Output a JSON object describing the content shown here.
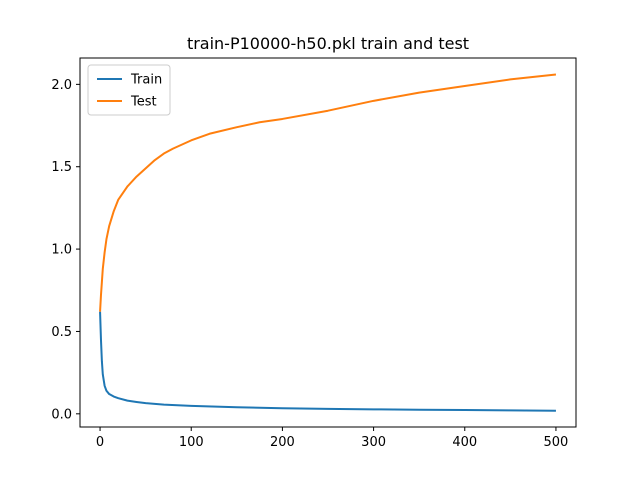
{
  "chart_data": {
    "type": "line",
    "title": "train-P10000-h50.pkl train and test",
    "xlabel": "",
    "ylabel": "",
    "xlim": [
      -22,
      522
    ],
    "ylim": [
      -0.08,
      2.16
    ],
    "xticks": [
      0,
      100,
      200,
      300,
      400,
      500
    ],
    "xtick_labels": [
      "0",
      "100",
      "200",
      "300",
      "400",
      "500"
    ],
    "yticks": [
      0.0,
      0.5,
      1.0,
      1.5,
      2.0
    ],
    "ytick_labels": [
      "0.0",
      "0.5",
      "1.0",
      "1.5",
      "2.0"
    ],
    "grid": false,
    "legend": {
      "placement": "upper left"
    },
    "series": [
      {
        "name": "Train",
        "color": "#1f77b4",
        "x": [
          0,
          1,
          2,
          3,
          5,
          7,
          10,
          15,
          20,
          30,
          40,
          50,
          70,
          100,
          150,
          200,
          250,
          300,
          350,
          400,
          450,
          500
        ],
        "y": [
          0.62,
          0.45,
          0.32,
          0.24,
          0.17,
          0.14,
          0.12,
          0.105,
          0.095,
          0.08,
          0.072,
          0.065,
          0.056,
          0.048,
          0.04,
          0.034,
          0.03,
          0.027,
          0.025,
          0.023,
          0.021,
          0.019
        ]
      },
      {
        "name": "Test",
        "color": "#ff7f0e",
        "x": [
          0,
          1,
          2,
          3,
          5,
          7,
          10,
          15,
          20,
          30,
          40,
          50,
          60,
          70,
          80,
          100,
          120,
          150,
          175,
          200,
          250,
          300,
          350,
          400,
          450,
          500
        ],
        "y": [
          0.62,
          0.72,
          0.8,
          0.88,
          0.98,
          1.06,
          1.14,
          1.23,
          1.3,
          1.38,
          1.44,
          1.49,
          1.54,
          1.58,
          1.61,
          1.66,
          1.7,
          1.74,
          1.77,
          1.79,
          1.84,
          1.9,
          1.95,
          1.99,
          2.03,
          2.06
        ]
      }
    ]
  }
}
